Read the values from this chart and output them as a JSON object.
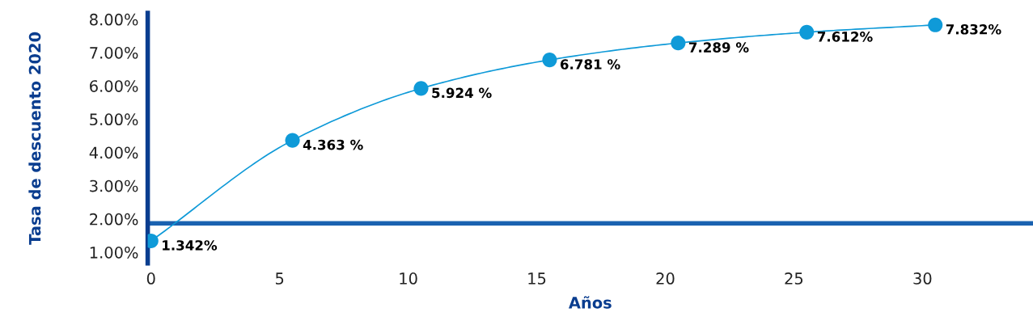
{
  "chart_data": {
    "type": "line",
    "xlabel": "Años",
    "ylabel": "Tasa de descuento 2020",
    "x": [
      0,
      5.5,
      10.5,
      15.5,
      20.5,
      25.5,
      30.5
    ],
    "series": [
      {
        "color": "#0f9ad8",
        "values": [
          1.342,
          4.363,
          5.924,
          6.781,
          7.289,
          7.612,
          7.832
        ],
        "value_labels": [
          "1.342%",
          "4.363 %",
          "5.924 %",
          "6.781 %",
          "7.289 %",
          "7.612%",
          "7.832%"
        ]
      }
    ],
    "xlim": [
      -0.13,
      34.3
    ],
    "xticks": [
      0,
      5,
      10,
      15,
      20,
      25,
      30
    ],
    "ylim": [
      0.67,
      8.19
    ],
    "yticks": [
      {
        "value": 1,
        "label": "1.00%"
      },
      {
        "value": 2,
        "label": "2.00%"
      },
      {
        "value": 3,
        "label": "3.00%"
      },
      {
        "value": 4,
        "label": "4.00%"
      },
      {
        "value": 5,
        "label": "5.00%"
      },
      {
        "value": 6,
        "label": "6.00%"
      },
      {
        "value": 7,
        "label": "7.00%"
      },
      {
        "value": 8,
        "label": "8.00%"
      }
    ],
    "ref_lines": [
      {
        "axis": "y",
        "value": 1.87,
        "color": "#1a62b0"
      }
    ],
    "marker": "circle",
    "grid": false,
    "legend": false
  }
}
